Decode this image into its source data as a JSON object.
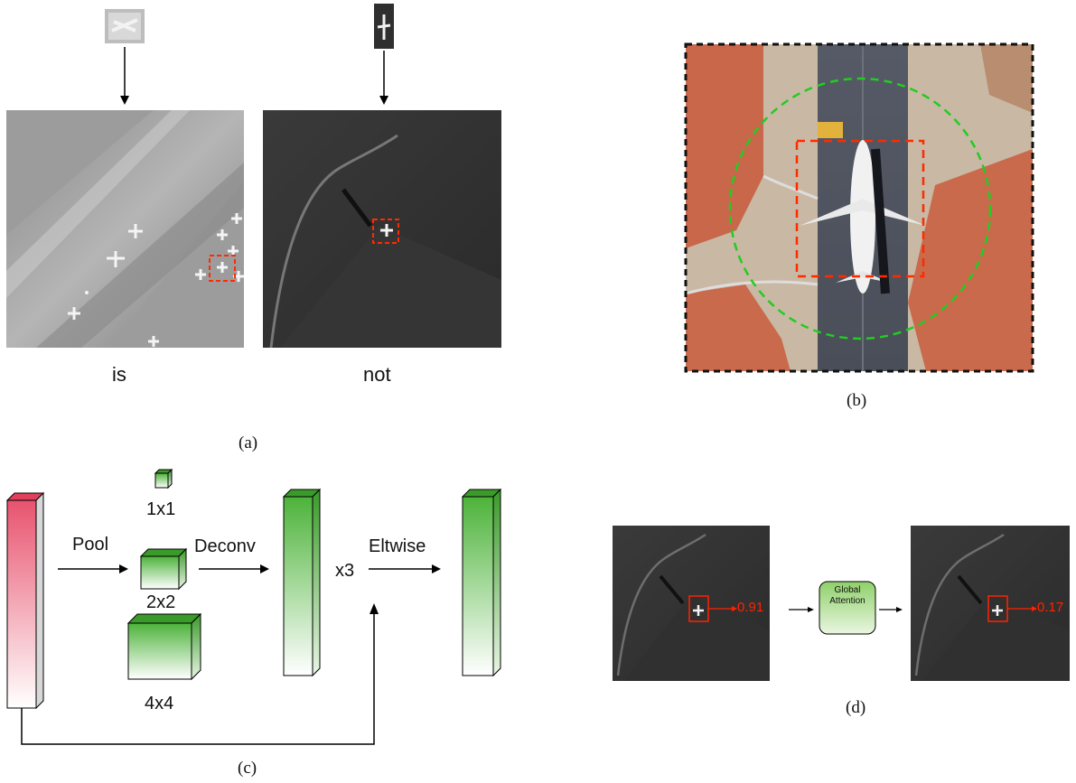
{
  "panel_a": {
    "caption": "(a)",
    "left_label": "is",
    "right_label": "not"
  },
  "panel_b": {
    "caption": "(b)",
    "colors": {
      "detection_box": "#ff2a00",
      "context_circle": "#22cc22",
      "frame": "#111111"
    }
  },
  "panel_c": {
    "caption": "(c)",
    "pool_label": "Pool",
    "deconv_label": "Deconv",
    "eltwise_label": "Eltwise",
    "repeat_label": "x3",
    "size_labels": [
      "1x1",
      "2x2",
      "4x4"
    ],
    "colors": {
      "input_block": "#e8536e",
      "feature_block": "#4db33a"
    }
  },
  "panel_d": {
    "caption": "(d)",
    "score_before": "0.91",
    "score_after": "0.17",
    "module_label_line1": "Global",
    "module_label_line2": "Attention",
    "colors": {
      "score": "#ff2200",
      "box": "#ff2200",
      "module": "#8fd06a"
    }
  }
}
